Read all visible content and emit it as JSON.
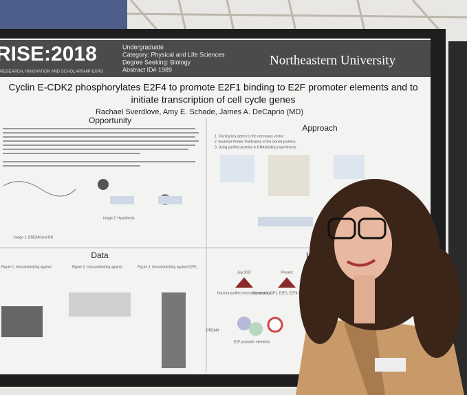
{
  "poster": {
    "expo": {
      "logo": "RISE:2018",
      "tagline": "RESEARCH, INNOVATION AND SCHOLARSHIP EXPO",
      "meta": [
        "Undergraduate",
        "Category: Physical and Life Sciences",
        "Degree Seeking: Biology",
        "Abstract ID# 1989"
      ]
    },
    "university": "Northeastern University",
    "title_lines": [
      "Cyclin E-CDK2 phosphorylates E2F4 to promote E2F1 binding to E2F promoter elements and to",
      "initiate transcription of cell cycle genes"
    ],
    "authors": "Rachael Sverdlove, Amy E. Schade, James A. DeCaprio (MD)",
    "sections": {
      "opportunity": {
        "heading": "Opportunity",
        "figures": [
          "Image 1: DREAM and RB",
          "Image 2: Hypothesis"
        ]
      },
      "approach": {
        "heading": "Approach",
        "steps": [
          "1. Cloning key genes to the necessary vector",
          "2. Bacterial Protein Purification of the cloned proteins",
          "3. Using purified proteins in DNA binding experiments"
        ]
      },
      "data": {
        "heading": "Data",
        "figures": [
          "Figure 1: Immunoblotting against",
          "Figure 2: Immunoblotting against",
          "Figure 3: Immunoblotting against E2F1,"
        ]
      },
      "impact": {
        "heading": "Im",
        "timeline": [
          {
            "date": "July 2017",
            "note": "Had not purified necessary proteins"
          },
          {
            "date": "Present",
            "note": "Expressing DP1, E2F1, E2F4 in Human cells"
          }
        ],
        "labels": [
          "DREAM",
          "E2F promoter elements"
        ]
      }
    }
  }
}
